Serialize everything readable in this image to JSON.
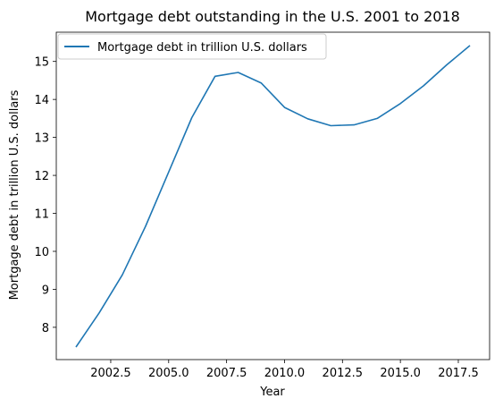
{
  "chart_data": {
    "type": "line",
    "title": "Mortgage debt outstanding in the U.S. 2001 to 2018",
    "xlabel": "Year",
    "ylabel": "Mortgage debt in trillion U.S. dollars",
    "x": [
      2001,
      2002,
      2003,
      2004,
      2005,
      2006,
      2007,
      2008,
      2009,
      2010,
      2011,
      2012,
      2013,
      2014,
      2015,
      2016,
      2017,
      2018
    ],
    "series": [
      {
        "name": "Mortgage debt in trillion U.S. dollars",
        "color": "#1f77b4",
        "values": [
          7.48,
          8.38,
          9.38,
          10.66,
          12.09,
          13.52,
          14.61,
          14.71,
          14.43,
          13.79,
          13.49,
          13.31,
          13.33,
          13.5,
          13.89,
          14.36,
          14.91,
          15.42
        ]
      }
    ],
    "xlim": [
      2000.15,
      2018.85
    ],
    "ylim": [
      7.15,
      15.77
    ],
    "xticks": [
      2002.5,
      2005.0,
      2007.5,
      2010.0,
      2012.5,
      2015.0,
      2017.5
    ],
    "xtick_labels": [
      "2002.5",
      "2005.0",
      "2007.5",
      "2010.0",
      "2012.5",
      "2015.0",
      "2017.5"
    ],
    "yticks": [
      8,
      9,
      10,
      11,
      12,
      13,
      14,
      15
    ],
    "ytick_labels": [
      "8",
      "9",
      "10",
      "11",
      "12",
      "13",
      "14",
      "15"
    ],
    "grid": false,
    "legend": "upper-left"
  }
}
